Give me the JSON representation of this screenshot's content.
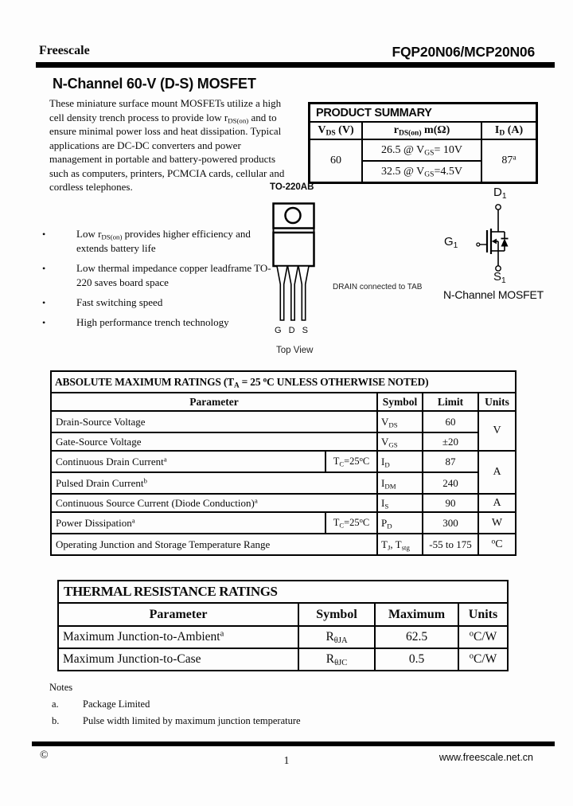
{
  "header": {
    "brand": "Freescale",
    "part_number": "FQP20N06/MCP20N06"
  },
  "title": "N-Channel 60-V (D-S) MOSFET",
  "description": "These miniature surface mount MOSFETs utilize a high cell density trench process to provide low r~DS(on)~ and to ensure minimal power loss and heat dissipation. Typical applications are DC-DC converters and power management in portable and battery-powered products such as computers, printers, PCMCIA cards, cellular and cordless telephones.",
  "features": {
    "bullet_char": "•",
    "items": [
      "Low r~DS(on)~ provides higher efficiency and extends battery life",
      "Low thermal impedance copper leadframe TO-220 saves board space",
      "Fast switching speed",
      "High performance trench technology"
    ]
  },
  "product_summary": {
    "title": "PRODUCT SUMMARY",
    "columns": [
      "V~DS~ (V)",
      "r~DS(on)~ m(Ω)",
      "I~D~ (A)"
    ],
    "vds_value": "60",
    "rds_values": [
      "26.5 @ V~GS~= 10V",
      "32.5 @ V~GS~=4.5V"
    ],
    "id_value": "87^a^"
  },
  "package": {
    "name": "TO-220AB",
    "pins": [
      "G",
      "D",
      "S"
    ],
    "view_label": "Top View",
    "drain_note": "DRAIN connected to TAB"
  },
  "mosfet_symbol": {
    "drain_label": "D~1~",
    "gate_label": "G~1~",
    "source_label": "S~1~",
    "caption": "N-Channel MOSFET"
  },
  "abs_max": {
    "title": "ABSOLUTE MAXIMUM RATINGS (T~A~ = 25 ^o^C UNLESS OTHERWISE NOTED)",
    "columns": [
      "Parameter",
      "Symbol",
      "Limit",
      "Units"
    ],
    "rows": [
      {
        "param": "Drain-Source Voltage",
        "condition": "",
        "symbol": "V~DS~",
        "limit": "60",
        "units": "V"
      },
      {
        "param": "Gate-Source Voltage",
        "condition": "",
        "symbol": "V~GS~",
        "limit": "±20",
        "units": ""
      },
      {
        "param": "Continuous Drain Current^a^",
        "condition": "T~C~=25^o^C",
        "symbol": "I~D~",
        "limit": "87",
        "units": "A"
      },
      {
        "param": "Pulsed Drain Current^b^",
        "condition": "",
        "symbol": "I~DM~",
        "limit": "240",
        "units": ""
      },
      {
        "param": "Continuous Source Current (Diode Conduction)^a^",
        "condition": "",
        "symbol": "I~S~",
        "limit": "90",
        "units": "A"
      },
      {
        "param": "Power Dissipation^a^",
        "condition": "T~C~=25^o^C",
        "symbol": "P~D~",
        "limit": "300",
        "units": "W"
      },
      {
        "param": "Operating Junction and Storage Temperature Range",
        "condition": "",
        "symbol": "T~J~, T~stg~",
        "limit": "-55 to 175",
        "units": "^o^C"
      }
    ]
  },
  "thermal": {
    "title": "THERMAL RESISTANCE RATINGS",
    "columns": [
      "Parameter",
      "Symbol",
      "Maximum",
      "Units"
    ],
    "rows": [
      {
        "param": "Maximum Junction-to-Ambient^a^",
        "symbol": "R~θJA~",
        "maximum": "62.5",
        "units": "^o^C/W"
      },
      {
        "param": "Maximum Junction-to-Case",
        "symbol": "R~θJC~",
        "maximum": "0.5",
        "units": "^o^C/W"
      }
    ]
  },
  "notes": {
    "heading": "Notes",
    "items": [
      {
        "label": "a.",
        "text": "Package Limited"
      },
      {
        "label": "b.",
        "text": "Pulse width limited by maximum junction temperature"
      }
    ]
  },
  "footer": {
    "copyright": "©",
    "page_number": "1",
    "website": "www.freescale.net.cn"
  }
}
